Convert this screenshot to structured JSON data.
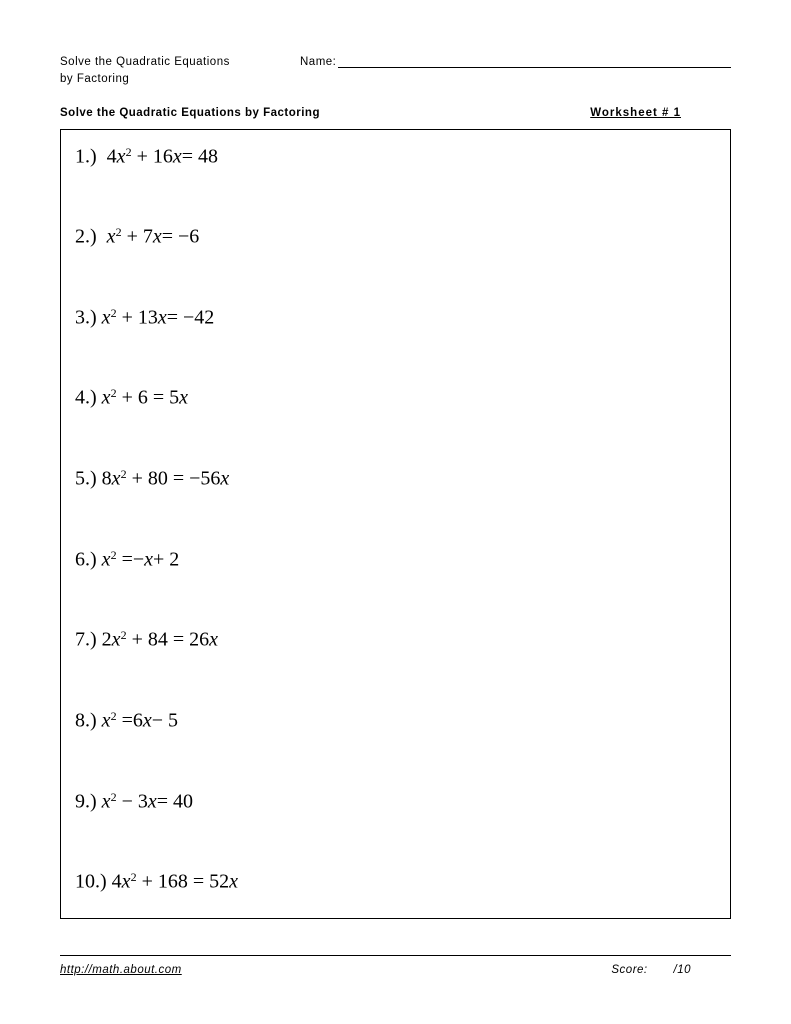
{
  "header": {
    "title_line1": "Solve the Quadratic Equations",
    "title_line2": "by Factoring",
    "name_label": "Name:"
  },
  "subheader": {
    "left": "Solve the Quadratic Equations by Factoring",
    "right": "Worksheet # 1"
  },
  "problems": [
    {
      "n": "1.)",
      "lead": "  4",
      "var1": "x",
      "sup": "2",
      "mid": " + 16",
      "var2": "x",
      "tail": "= 48"
    },
    {
      "n": "2.)",
      "lead": "  ",
      "var1": "x",
      "sup": "2",
      "mid": " + 7",
      "var2": "x",
      "tail": "= −6"
    },
    {
      "n": "3.)",
      "lead": " ",
      "var1": "x",
      "sup": "2",
      "mid": " + 13",
      "var2": "x",
      "tail": "= −42"
    },
    {
      "n": "4.)",
      "lead": " ",
      "var1": "x",
      "sup": "2",
      "mid": " + 6 = 5",
      "var2": "x",
      "tail": ""
    },
    {
      "n": "5.)",
      "lead": " 8",
      "var1": "x",
      "sup": "2",
      "mid": " + 80 = −56",
      "var2": "x",
      "tail": ""
    },
    {
      "n": "6.)",
      "lead": " ",
      "var1": "x",
      "sup": "2",
      "mid": " =−",
      "var2": "x",
      "tail": "+ 2"
    },
    {
      "n": "7.)",
      "lead": " 2",
      "var1": "x",
      "sup": "2",
      "mid": " + 84 = 26",
      "var2": "x",
      "tail": ""
    },
    {
      "n": "8.)",
      "lead": " ",
      "var1": "x",
      "sup": "2",
      "mid": " =6",
      "var2": "x",
      "tail": "− 5"
    },
    {
      "n": "9.)",
      "lead": " ",
      "var1": "x",
      "sup": "2",
      "mid": " − 3",
      "var2": "x",
      "tail": "= 40"
    },
    {
      "n": "10.)",
      "lead": " 4",
      "var1": "x",
      "sup": "2",
      "mid": " + 168 = 52",
      "var2": "x",
      "tail": ""
    }
  ],
  "footer": {
    "url": "http://math.about.com",
    "score_label": "Score:",
    "score_total": "/10"
  },
  "colors": {
    "text": "#000000",
    "background": "#ffffff",
    "border": "#000000"
  }
}
